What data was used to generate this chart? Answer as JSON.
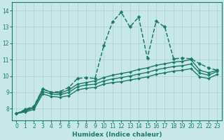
{
  "xlabel": "Humidex (Indice chaleur)",
  "ylabel": "",
  "xlim": [
    -0.5,
    23.5
  ],
  "ylim": [
    7.3,
    14.5
  ],
  "yticks": [
    8,
    9,
    10,
    11,
    12,
    13,
    14
  ],
  "xticks": [
    0,
    1,
    2,
    3,
    4,
    5,
    6,
    7,
    8,
    9,
    10,
    11,
    12,
    13,
    14,
    15,
    16,
    17,
    18,
    19,
    20,
    21,
    22,
    23
  ],
  "bg_color": "#c8e8e8",
  "grid_color": "#aacfcf",
  "line_color": "#1a7a6a",
  "lines": [
    {
      "x": [
        0,
        1,
        2,
        3,
        4,
        5,
        6,
        7,
        8,
        9,
        10,
        11,
        12,
        13,
        14,
        15,
        16,
        17,
        18,
        19,
        20,
        21,
        22,
        23
      ],
      "y": [
        7.7,
        7.95,
        8.15,
        9.2,
        9.0,
        9.05,
        9.3,
        9.85,
        9.9,
        9.85,
        11.85,
        13.3,
        13.9,
        13.0,
        13.6,
        11.1,
        13.35,
        13.0,
        11.05,
        11.1,
        11.05,
        10.75,
        10.5,
        10.35
      ],
      "marker": "D",
      "markersize": 2.5,
      "linewidth": 1.1,
      "linestyle": "--"
    },
    {
      "x": [
        0,
        1,
        2,
        3,
        4,
        5,
        6,
        7,
        8,
        9,
        10,
        11,
        12,
        13,
        14,
        15,
        16,
        17,
        18,
        19,
        20,
        21,
        22,
        23
      ],
      "y": [
        7.7,
        7.9,
        8.1,
        9.2,
        9.0,
        8.95,
        9.15,
        9.5,
        9.6,
        9.7,
        9.9,
        10.05,
        10.15,
        10.25,
        10.4,
        10.5,
        10.65,
        10.75,
        10.85,
        10.9,
        11.0,
        10.35,
        10.2,
        10.35
      ],
      "marker": "D",
      "markersize": 2.0,
      "linewidth": 1.0,
      "linestyle": "-"
    },
    {
      "x": [
        0,
        1,
        2,
        3,
        4,
        5,
        6,
        7,
        8,
        9,
        10,
        11,
        12,
        13,
        14,
        15,
        16,
        17,
        18,
        19,
        20,
        21,
        22,
        23
      ],
      "y": [
        7.7,
        7.85,
        8.05,
        9.05,
        8.9,
        8.85,
        9.0,
        9.35,
        9.45,
        9.5,
        9.7,
        9.82,
        9.9,
        10.0,
        10.12,
        10.22,
        10.38,
        10.48,
        10.58,
        10.63,
        10.73,
        10.18,
        10.05,
        10.28
      ],
      "marker": "D",
      "markersize": 2.0,
      "linewidth": 1.0,
      "linestyle": "-"
    },
    {
      "x": [
        0,
        1,
        2,
        3,
        4,
        5,
        6,
        7,
        8,
        9,
        10,
        11,
        12,
        13,
        14,
        15,
        16,
        17,
        18,
        19,
        20,
        21,
        22,
        23
      ],
      "y": [
        7.7,
        7.8,
        7.95,
        8.9,
        8.75,
        8.7,
        8.8,
        9.15,
        9.25,
        9.3,
        9.5,
        9.6,
        9.65,
        9.75,
        9.85,
        9.95,
        10.1,
        10.2,
        10.3,
        10.35,
        10.45,
        9.95,
        9.85,
        10.1
      ],
      "marker": "D",
      "markersize": 2.0,
      "linewidth": 1.0,
      "linestyle": "-"
    }
  ]
}
